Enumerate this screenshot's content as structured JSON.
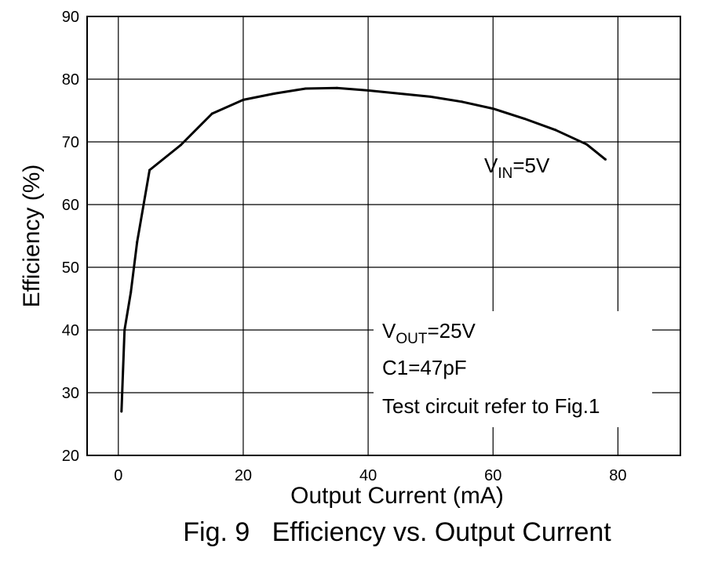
{
  "chart_data": {
    "type": "line",
    "ylabel": "Efficiency (%)",
    "xlabel": "Output Current (mA)",
    "xlim": [
      -5,
      90
    ],
    "ylim": [
      20,
      90
    ],
    "x_ticks": [
      0,
      20,
      40,
      60,
      80
    ],
    "y_ticks": [
      20,
      30,
      40,
      50,
      60,
      70,
      80,
      90
    ],
    "grid": true,
    "series": [
      {
        "x": [
          0.5,
          1,
          2,
          3,
          5,
          10,
          15,
          20,
          25,
          30,
          35,
          40,
          45,
          50,
          55,
          60,
          65,
          70,
          75,
          78
        ],
        "values": [
          27,
          40,
          46,
          54,
          65.5,
          69.5,
          74.5,
          76.7,
          77.7,
          78.5,
          78.6,
          78.2,
          77.7,
          77.2,
          76.4,
          75.3,
          73.7,
          71.9,
          69.6,
          67.2
        ]
      }
    ],
    "annotations": {
      "vin": {
        "main": "V",
        "sub": "IN",
        "rest": "=5V"
      },
      "vout": {
        "main": "V",
        "sub": "OUT",
        "rest": "=25V"
      },
      "c1": "C1=47pF",
      "test": "Test circuit refer to Fig.1"
    }
  },
  "caption": "Fig. 9   Efficiency vs. Output Current"
}
